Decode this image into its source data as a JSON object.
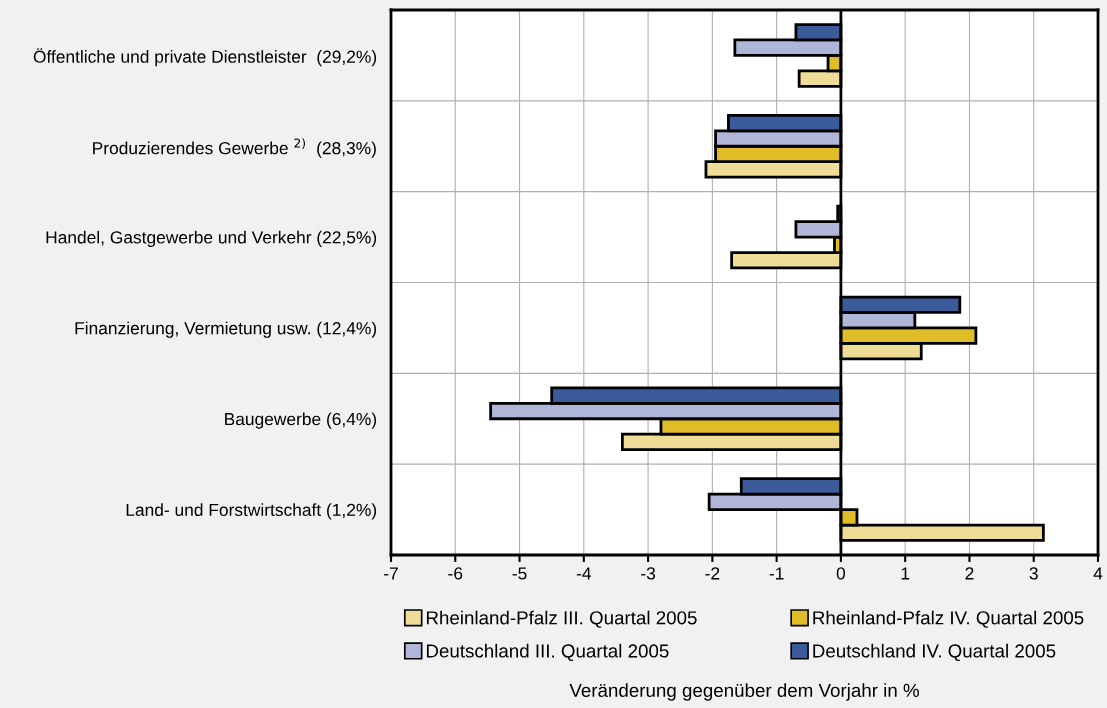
{
  "chart_data": {
    "type": "bar",
    "orientation": "horizontal",
    "annotations": [
      "Veränderung gegenüber dem Vorjahr in %"
    ],
    "categories": [
      "Öffentliche und private Dienstleister  (29,2%)",
      "Produzierendes Gewerbe $^{2)}$  (28,3%)",
      "Handel, Gastgewerbe und Verkehr (22,5%)",
      "Finanzierung, Vermietung usw. (12,4%)",
      "Baugewerbe (6,4%)",
      "Land- und Forstwirtschaft (1,2%)"
    ],
    "series": [
      {
        "name": "Rheinland-Pfalz III. Quartal 2005",
        "color": "#efdc96",
        "values": [
          -0.65,
          -2.1,
          -1.7,
          1.25,
          -3.4,
          3.15
        ]
      },
      {
        "name": "Rheinland-Pfalz IV. Quartal 2005",
        "color": "#dfbd26",
        "values": [
          -0.2,
          -1.95,
          -0.1,
          2.1,
          -2.8,
          0.25
        ]
      },
      {
        "name": "Deutschland III. Quartal 2005",
        "color": "#b0b6d8",
        "values": [
          -1.65,
          -1.95,
          -0.7,
          1.15,
          -5.45,
          -2.05
        ]
      },
      {
        "name": "Deutschland IV. Quartal 2005",
        "color": "#3a5a9a",
        "values": [
          -0.7,
          -1.75,
          -0.05,
          1.85,
          -4.5,
          -1.55
        ]
      }
    ],
    "xlim": [
      -7,
      4
    ],
    "xticks": [
      -7,
      -6,
      -5,
      -4,
      -3,
      -2,
      -1,
      0,
      1,
      2,
      3,
      4
    ],
    "grid": true,
    "legend": "bottom"
  }
}
